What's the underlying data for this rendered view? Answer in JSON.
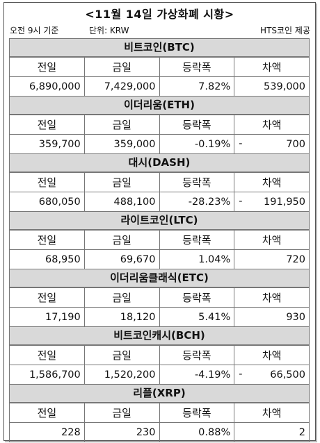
{
  "title": "<11월 14일 가상화폐 시황>",
  "meta": {
    "time": "오전 9시 기준",
    "unit": "단위: KRW",
    "source": "HTS코인 제공"
  },
  "columns": [
    "전일",
    "금일",
    "등락폭",
    "차액"
  ],
  "coins": [
    {
      "name": "비트코인(BTC)",
      "prev": "6,890,000",
      "today": "7,429,000",
      "change": "7.82%",
      "diff_sign": "",
      "diff": "539,000"
    },
    {
      "name": "이더리움(ETH)",
      "prev": "359,700",
      "today": "359,000",
      "change": "-0.19%",
      "diff_sign": "-",
      "diff": "700"
    },
    {
      "name": "대시(DASH)",
      "prev": "680,050",
      "today": "488,100",
      "change": "-28.23%",
      "diff_sign": "-",
      "diff": "191,950"
    },
    {
      "name": "라이트코인(LTC)",
      "prev": "68,950",
      "today": "69,670",
      "change": "1.04%",
      "diff_sign": "",
      "diff": "720"
    },
    {
      "name": "이더리움클래식(ETC)",
      "prev": "17,190",
      "today": "18,120",
      "change": "5.41%",
      "diff_sign": "",
      "diff": "930"
    },
    {
      "name": "비트코인캐시(BCH)",
      "prev": "1,586,700",
      "today": "1,520,200",
      "change": "-4.19%",
      "diff_sign": "-",
      "diff": "66,500"
    },
    {
      "name": "리플(XRP)",
      "prev": "228",
      "today": "230",
      "change": "0.88%",
      "diff_sign": "",
      "diff": "2"
    }
  ]
}
